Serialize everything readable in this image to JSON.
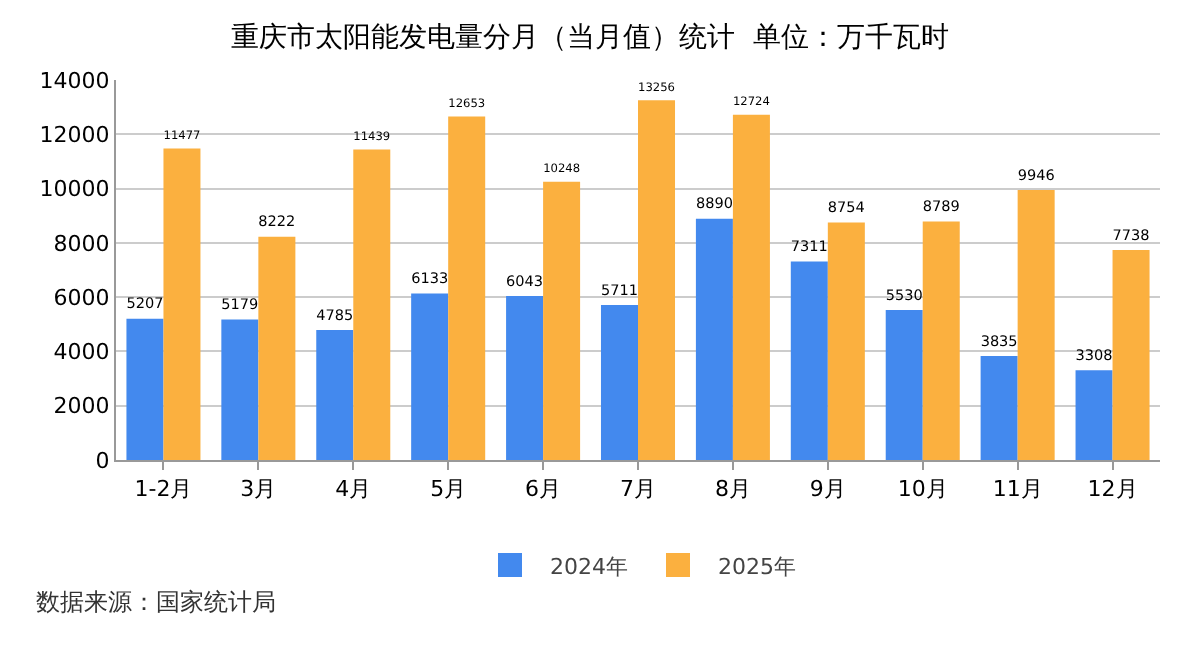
{
  "chart_data": {
    "type": "bar",
    "title": "重庆市太阳能发电量分月（当月值）统计  单位：万千瓦时",
    "categories": [
      "1-2月",
      "3月",
      "4月",
      "5月",
      "6月",
      "7月",
      "8月",
      "9月",
      "10月",
      "11月",
      "12月"
    ],
    "series": [
      {
        "name": "2024年",
        "color": "#4389ee",
        "values": [
          5207,
          5179,
          4785,
          6133,
          6043,
          5711,
          8890,
          7311,
          5530,
          3835,
          3308
        ]
      },
      {
        "name": "2025年",
        "color": "#fbb03f",
        "values": [
          11477,
          8222,
          11439,
          12653,
          10248,
          13256,
          12724,
          8754,
          8789,
          9946,
          7738
        ]
      }
    ],
    "ylim": [
      0,
      14000
    ],
    "yticks": [
      0,
      2000,
      4000,
      6000,
      8000,
      10000,
      12000,
      14000
    ],
    "grid": "y",
    "legend": "bottom",
    "data_labels": true,
    "annotations": [
      "数据来源：国家统计局"
    ]
  }
}
